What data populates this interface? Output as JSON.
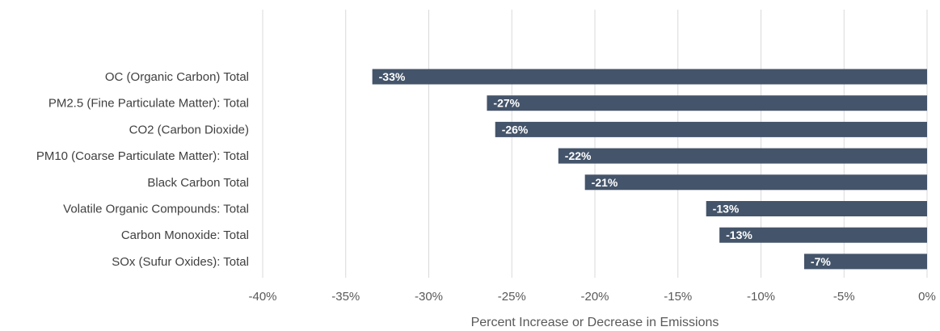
{
  "chart_data": {
    "type": "bar",
    "orientation": "horizontal",
    "categories": [
      "OC (Organic Carbon) Total",
      "PM2.5 (Fine Particulate Matter): Total",
      "CO2 (Carbon Dioxide)",
      "PM10 (Coarse Particulate Matter): Total",
      "Black Carbon Total",
      "Volatile Organic Compounds: Total",
      "Carbon Monoxide: Total",
      "SOx (Sufur Oxides): Total"
    ],
    "values": [
      -33.4,
      -26.5,
      -26.0,
      -22.2,
      -20.6,
      -13.3,
      -12.5,
      -7.4
    ],
    "data_labels": [
      "-33%",
      "-27%",
      "-26%",
      "-22%",
      "-21%",
      "-13%",
      "-13%",
      "-7%"
    ],
    "xlabel": "Percent Increase or Decrease in Emissions",
    "xlim": [
      -40,
      0
    ],
    "x_ticks": [
      -40,
      -35,
      -30,
      -25,
      -20,
      -15,
      -10,
      -5,
      0
    ],
    "x_tick_labels": [
      "-40%",
      "-35%",
      "-30%",
      "-25%",
      "-20%",
      "-15%",
      "-10%",
      "-5%",
      "0%"
    ],
    "grid": true,
    "bar_color": "#44546a"
  }
}
